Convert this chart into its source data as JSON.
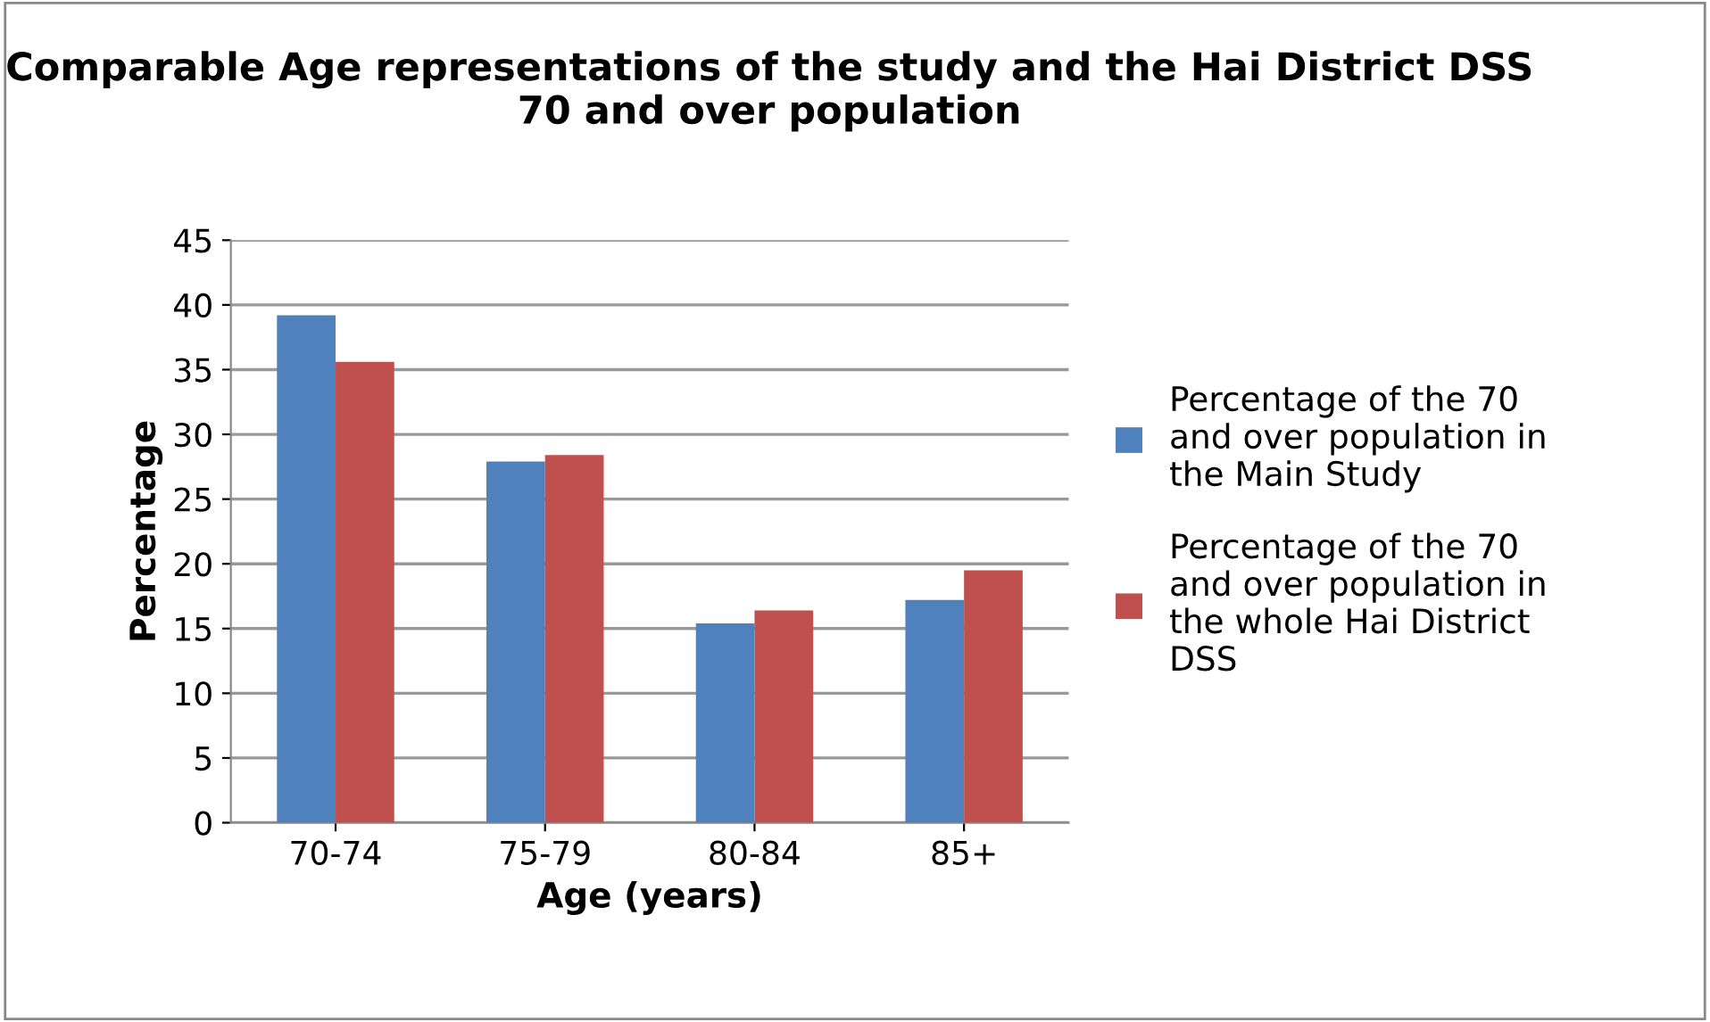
{
  "chart_data": {
    "type": "bar",
    "title": "Comparable Age representations of the study and the Hai District DSS 70 and over population",
    "xlabel": "Age (years)",
    "ylabel": "Percentage",
    "categories": [
      "70-74",
      "75-79",
      "80-84",
      "85+"
    ],
    "series": [
      {
        "name": "Percentage of the 70 and over population in the Main Study",
        "color": "#4f81bd",
        "values": [
          39.2,
          27.9,
          15.4,
          17.2
        ]
      },
      {
        "name": "Percentage of the 70 and over population in the whole Hai District DSS",
        "color": "#c0504d",
        "values": [
          35.6,
          28.4,
          16.4,
          19.5
        ]
      }
    ],
    "ylim": [
      0,
      45
    ],
    "yticks": [
      0,
      5,
      10,
      15,
      20,
      25,
      30,
      35,
      40,
      45
    ],
    "grid": "y",
    "legend": "right"
  }
}
